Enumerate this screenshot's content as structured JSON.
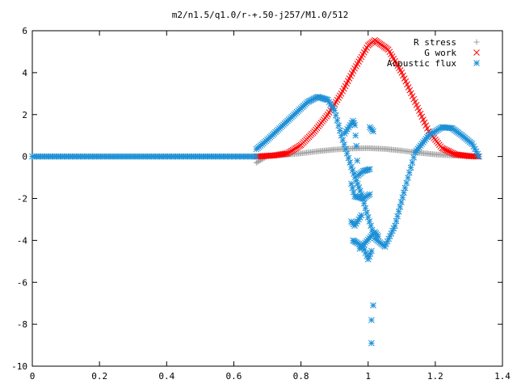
{
  "chart_data": {
    "type": "scatter",
    "title": "m2/n1.5/q1.0/r-+.50-j257/M1.0/512",
    "xlabel": "",
    "ylabel": "",
    "xlim": [
      0,
      1.4
    ],
    "ylim": [
      -10,
      6
    ],
    "x_ticks": [
      "0",
      "0.2",
      "0.4",
      "0.6",
      "0.8",
      "1",
      "1.2",
      "1.4"
    ],
    "y_ticks": [
      "6",
      "4",
      "2",
      "0",
      "-2",
      "-4",
      "-6",
      "-8",
      "-10"
    ],
    "legend_position": "top-right",
    "grid": false,
    "series": [
      {
        "name": "R stress",
        "marker": "plus",
        "color": "#a0a0a0",
        "points": [
          [
            0.667,
            -0.3
          ],
          [
            0.7,
            0.02
          ],
          [
            0.75,
            0.08
          ],
          [
            0.8,
            0.15
          ],
          [
            0.85,
            0.25
          ],
          [
            0.9,
            0.33
          ],
          [
            0.95,
            0.38
          ],
          [
            1.0,
            0.4
          ],
          [
            1.05,
            0.36
          ],
          [
            1.1,
            0.28
          ],
          [
            1.15,
            0.18
          ],
          [
            1.2,
            0.1
          ],
          [
            1.25,
            0.05
          ],
          [
            1.3,
            0.02
          ],
          [
            1.33,
            0.0
          ]
        ]
      },
      {
        "name": "G work",
        "marker": "x",
        "color": "#ff0000",
        "points": [
          [
            0.667,
            0.0
          ],
          [
            0.72,
            0.05
          ],
          [
            0.76,
            0.15
          ],
          [
            0.8,
            0.55
          ],
          [
            0.84,
            1.2
          ],
          [
            0.88,
            2.0
          ],
          [
            0.92,
            3.0
          ],
          [
            0.96,
            4.2
          ],
          [
            1.0,
            5.3
          ],
          [
            1.02,
            5.55
          ],
          [
            1.06,
            5.1
          ],
          [
            1.1,
            4.0
          ],
          [
            1.14,
            2.6
          ],
          [
            1.18,
            1.2
          ],
          [
            1.22,
            0.4
          ],
          [
            1.26,
            0.1
          ],
          [
            1.3,
            0.02
          ],
          [
            1.33,
            0.0
          ]
        ]
      },
      {
        "name": "Acoustic flux",
        "marker": "star",
        "color": "#1e90d6",
        "points": [
          [
            0.667,
            0.35
          ],
          [
            0.7,
            0.8
          ],
          [
            0.74,
            1.4
          ],
          [
            0.78,
            2.0
          ],
          [
            0.82,
            2.6
          ],
          [
            0.85,
            2.85
          ],
          [
            0.88,
            2.7
          ],
          [
            0.9,
            2.2
          ],
          [
            0.92,
            1.0
          ],
          [
            0.95,
            -0.5
          ],
          [
            0.98,
            -1.8
          ],
          [
            1.0,
            -2.9
          ],
          [
            1.02,
            -3.9
          ],
          [
            1.05,
            -4.3
          ],
          [
            1.08,
            -3.3
          ],
          [
            1.11,
            -1.5
          ],
          [
            1.14,
            0.2
          ],
          [
            1.18,
            1.0
          ],
          [
            1.22,
            1.4
          ],
          [
            1.25,
            1.35
          ],
          [
            1.28,
            1.0
          ],
          [
            1.31,
            0.6
          ],
          [
            1.33,
            0.0
          ],
          [
            0.93,
            1.1
          ],
          [
            0.955,
            1.7
          ],
          [
            0.96,
            1.5
          ],
          [
            0.965,
            0.5
          ],
          [
            0.97,
            -0.9
          ],
          [
            0.985,
            -0.7
          ],
          [
            1.005,
            -0.6
          ],
          [
            0.95,
            -1.3
          ],
          [
            0.96,
            -1.9
          ],
          [
            0.985,
            -2.0
          ],
          [
            1.005,
            -1.8
          ],
          [
            0.95,
            -3.1
          ],
          [
            0.96,
            -3.3
          ],
          [
            0.98,
            -2.8
          ],
          [
            0.955,
            -4.0
          ],
          [
            0.965,
            -4.1
          ],
          [
            0.985,
            -4.3
          ],
          [
            1.0,
            -4.9
          ],
          [
            1.01,
            -4.5
          ],
          [
            0.975,
            -4.4
          ],
          [
            1.02,
            -3.6
          ],
          [
            1.03,
            -3.8
          ],
          [
            1.005,
            1.4
          ],
          [
            1.015,
            1.2
          ],
          [
            1.015,
            -7.1
          ],
          [
            1.01,
            -7.8
          ],
          [
            1.01,
            -8.9
          ]
        ]
      }
    ]
  }
}
